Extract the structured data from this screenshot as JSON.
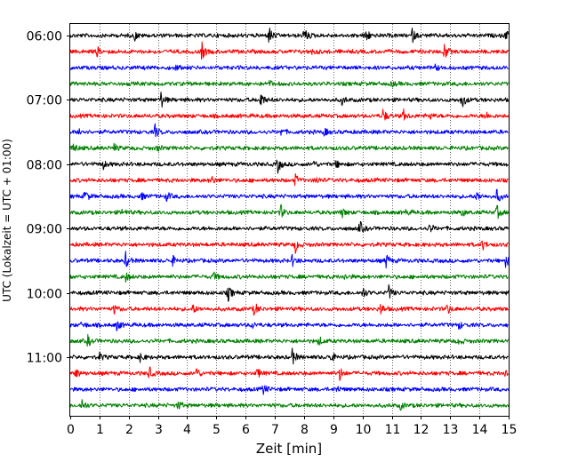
{
  "chart_data": {
    "type": "line",
    "title": "",
    "xlabel": "Zeit  [min]",
    "ylabel": "UTC (Lokalzeit = UTC + 01:00)",
    "xlim": [
      0,
      15
    ],
    "x_ticks": [
      "0",
      "1",
      "2",
      "3",
      "4",
      "5",
      "6",
      "7",
      "8",
      "9",
      "10",
      "11",
      "12",
      "13",
      "14",
      "15"
    ],
    "y_ticks": [
      "06:00",
      "07:00",
      "08:00",
      "09:00",
      "10:00",
      "11:00"
    ],
    "vertical_grid": true,
    "grid_style": "dotted",
    "trace_colors": [
      "#000000",
      "#ff0000",
      "#0000ff",
      "#008000"
    ],
    "traces": [
      {
        "time": "06:00",
        "color": "#000000",
        "events": [
          [
            2.2,
            0.5
          ],
          [
            6.8,
            1.0
          ],
          [
            8.0,
            1.0
          ],
          [
            10.1,
            1.0
          ],
          [
            11.7,
            0.7
          ],
          [
            14.9,
            0.6
          ]
        ]
      },
      {
        "time": "06:15",
        "color": "#ff0000",
        "events": [
          [
            0.9,
            0.6
          ],
          [
            4.5,
            1.0
          ],
          [
            8.3,
            0.4
          ],
          [
            12.8,
            1.0
          ]
        ]
      },
      {
        "time": "06:30",
        "color": "#0000ff",
        "events": [
          [
            3.6,
            0.3
          ],
          [
            12.5,
            0.3
          ]
        ]
      },
      {
        "time": "06:45",
        "color": "#008000",
        "events": [
          [
            6.8,
            0.3
          ],
          [
            11.0,
            0.3
          ]
        ]
      },
      {
        "time": "07:00",
        "color": "#000000",
        "events": [
          [
            3.1,
            1.0
          ],
          [
            6.5,
            1.0
          ],
          [
            9.3,
            0.5
          ],
          [
            13.4,
            1.0
          ]
        ]
      },
      {
        "time": "07:15",
        "color": "#ff0000",
        "events": [
          [
            10.7,
            0.8
          ],
          [
            11.4,
            0.6
          ],
          [
            12.3,
            0.4
          ],
          [
            14.2,
            0.5
          ]
        ]
      },
      {
        "time": "07:30",
        "color": "#0000ff",
        "events": [
          [
            0.3,
            0.5
          ],
          [
            2.9,
            0.8
          ],
          [
            7.2,
            0.4
          ],
          [
            8.7,
            0.4
          ]
        ]
      },
      {
        "time": "07:45",
        "color": "#008000",
        "events": [
          [
            0.1,
            0.6
          ],
          [
            1.5,
            0.4
          ],
          [
            3.0,
            0.3
          ]
        ]
      },
      {
        "time": "08:00",
        "color": "#000000",
        "events": [
          [
            1.1,
            0.6
          ],
          [
            7.1,
            0.9
          ],
          [
            8.3,
            0.4
          ],
          [
            9.1,
            0.4
          ]
        ]
      },
      {
        "time": "08:15",
        "color": "#ff0000",
        "events": [
          [
            4.8,
            0.6
          ],
          [
            7.7,
            0.6
          ],
          [
            8.4,
            0.4
          ]
        ]
      },
      {
        "time": "08:30",
        "color": "#0000ff",
        "events": [
          [
            0.5,
            0.7
          ],
          [
            2.4,
            0.5
          ],
          [
            3.3,
            0.5
          ],
          [
            13.9,
            0.6
          ],
          [
            14.6,
            0.8
          ]
        ]
      },
      {
        "time": "08:45",
        "color": "#008000",
        "events": [
          [
            1.8,
            0.5
          ],
          [
            7.2,
            0.8
          ],
          [
            9.3,
            0.5
          ],
          [
            11.5,
            0.3
          ],
          [
            13.4,
            0.4
          ],
          [
            14.6,
            0.8
          ]
        ]
      },
      {
        "time": "09:00",
        "color": "#000000",
        "events": [
          [
            9.9,
            0.8
          ],
          [
            12.3,
            0.5
          ]
        ]
      },
      {
        "time": "09:15",
        "color": "#ff0000",
        "events": [
          [
            7.7,
            0.8
          ],
          [
            14.1,
            0.6
          ]
        ]
      },
      {
        "time": "09:30",
        "color": "#0000ff",
        "events": [
          [
            1.9,
            0.9
          ],
          [
            3.5,
            0.5
          ],
          [
            7.6,
            0.6
          ],
          [
            10.8,
            0.9
          ],
          [
            14.9,
            0.7
          ]
        ]
      },
      {
        "time": "09:45",
        "color": "#008000",
        "events": [
          [
            1.9,
            0.5
          ],
          [
            4.9,
            0.5
          ],
          [
            9.4,
            0.3
          ]
        ]
      },
      {
        "time": "10:00",
        "color": "#000000",
        "events": [
          [
            5.4,
            0.9
          ],
          [
            10.0,
            0.7
          ],
          [
            10.9,
            0.8
          ]
        ]
      },
      {
        "time": "10:15",
        "color": "#ff0000",
        "events": [
          [
            1.5,
            0.5
          ],
          [
            4.2,
            0.5
          ],
          [
            6.3,
            0.8
          ],
          [
            10.6,
            0.7
          ],
          [
            12.9,
            0.6
          ]
        ]
      },
      {
        "time": "10:30",
        "color": "#0000ff",
        "events": [
          [
            0.4,
            0.4
          ],
          [
            1.6,
            0.6
          ],
          [
            6.2,
            0.4
          ],
          [
            13.3,
            0.4
          ]
        ]
      },
      {
        "time": "10:45",
        "color": "#008000",
        "events": [
          [
            0.6,
            0.6
          ],
          [
            8.5,
            0.5
          ],
          [
            13.3,
            0.4
          ]
        ]
      },
      {
        "time": "11:00",
        "color": "#000000",
        "events": [
          [
            1.0,
            0.4
          ],
          [
            2.4,
            0.5
          ],
          [
            7.6,
            0.9
          ],
          [
            8.9,
            0.7
          ]
        ]
      },
      {
        "time": "11:15",
        "color": "#ff0000",
        "events": [
          [
            0.2,
            0.5
          ],
          [
            2.7,
            0.7
          ],
          [
            4.3,
            0.7
          ],
          [
            6.4,
            0.6
          ],
          [
            9.2,
            0.9
          ],
          [
            14.9,
            0.5
          ]
        ]
      },
      {
        "time": "11:30",
        "color": "#0000ff",
        "events": [
          [
            6.6,
            0.6
          ],
          [
            9.1,
            0.4
          ]
        ]
      },
      {
        "time": "11:45",
        "color": "#008000",
        "events": [
          [
            0.4,
            0.7
          ],
          [
            3.7,
            0.5
          ],
          [
            11.3,
            0.4
          ]
        ]
      }
    ]
  }
}
